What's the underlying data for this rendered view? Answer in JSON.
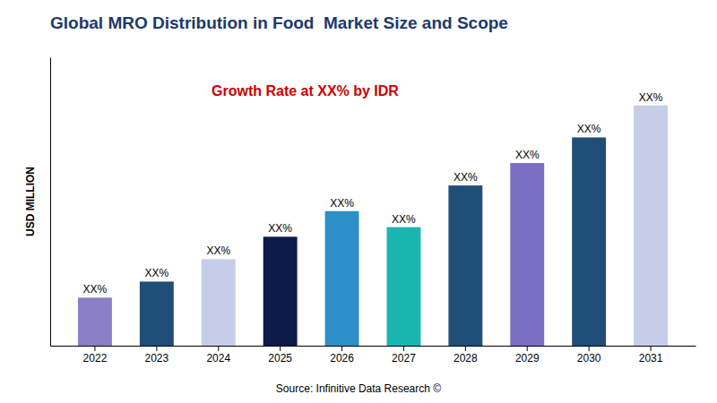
{
  "chart_data": {
    "type": "bar",
    "title": "Global MRO Distribution in Food  Market Size and Scope",
    "ylabel": "USD MILLION",
    "annotation": "Growth Rate at XX% by IDR",
    "source": "Source: Infinitive Data Research ©",
    "categories": [
      "2022",
      "2023",
      "2024",
      "2025",
      "2026",
      "2027",
      "2028",
      "2029",
      "2030",
      "2031"
    ],
    "values": [
      15,
      20,
      27,
      34,
      42,
      37,
      50,
      57,
      65,
      75
    ],
    "value_labels": [
      "XX%",
      "XX%",
      "XX%",
      "XX%",
      "XX%",
      "XX%",
      "XX%",
      "XX%",
      "XX%",
      "XX%"
    ],
    "data_labels": true,
    "colors": [
      "#8b7fc7",
      "#1f4e79",
      "#c5cde8",
      "#0d1b4b",
      "#2e8ec8",
      "#1ab5b0",
      "#1f4e79",
      "#7b6fc4",
      "#1f4e79",
      "#c5cde8"
    ],
    "ylim": [
      0,
      90
    ],
    "grid": false,
    "tick_labels": "x"
  }
}
